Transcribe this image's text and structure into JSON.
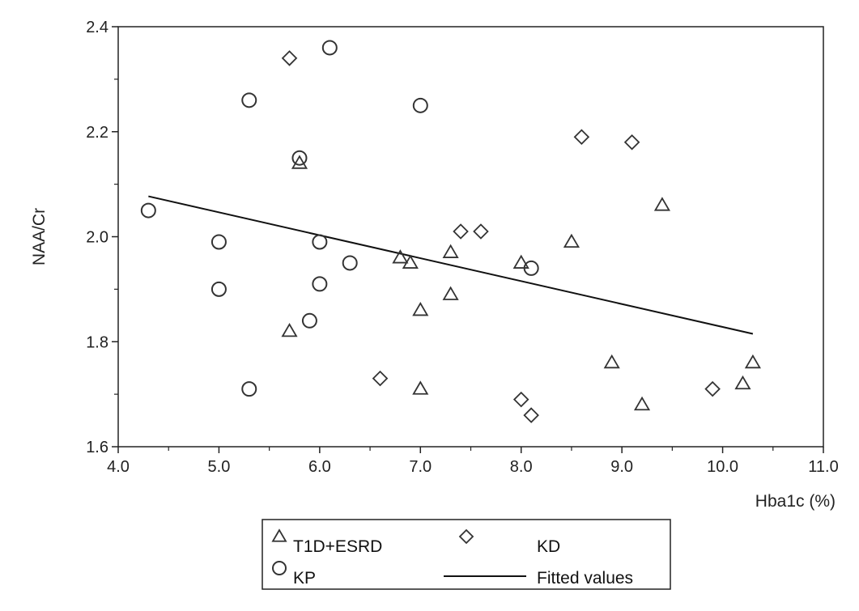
{
  "chart_data": {
    "type": "scatter",
    "xlabel": "Hba1c (%)",
    "ylabel": "NAA/Cr",
    "xlim": [
      4.0,
      11.0
    ],
    "ylim": [
      1.6,
      2.4
    ],
    "x_ticks": [
      "4.0",
      "5.0",
      "6.0",
      "7.0",
      "8.0",
      "9.0",
      "10.0",
      "11.0"
    ],
    "y_ticks": [
      "1.6",
      "1.8",
      "2.0",
      "2.2",
      "2.4"
    ],
    "grid": false,
    "legend_position": "bottom",
    "series": [
      {
        "name": "T1D+ESRD",
        "marker": "triangle",
        "color": "#333333",
        "points": [
          [
            5.7,
            1.82
          ],
          [
            5.8,
            2.14
          ],
          [
            6.8,
            1.96
          ],
          [
            6.9,
            1.95
          ],
          [
            7.0,
            1.86
          ],
          [
            7.0,
            1.71
          ],
          [
            7.3,
            1.97
          ],
          [
            7.3,
            1.89
          ],
          [
            8.0,
            1.95
          ],
          [
            8.5,
            1.99
          ],
          [
            8.9,
            1.76
          ],
          [
            9.2,
            1.68
          ],
          [
            9.4,
            2.06
          ],
          [
            10.2,
            1.72
          ],
          [
            10.3,
            1.76
          ]
        ]
      },
      {
        "name": "KD",
        "marker": "diamond",
        "color": "#333333",
        "points": [
          [
            5.7,
            2.34
          ],
          [
            6.6,
            1.73
          ],
          [
            7.4,
            2.01
          ],
          [
            7.6,
            2.01
          ],
          [
            8.0,
            1.69
          ],
          [
            8.1,
            1.66
          ],
          [
            8.6,
            2.19
          ],
          [
            9.1,
            2.18
          ],
          [
            9.9,
            1.71
          ]
        ]
      },
      {
        "name": "KP",
        "marker": "circle",
        "color": "#333333",
        "points": [
          [
            4.3,
            2.05
          ],
          [
            5.0,
            1.99
          ],
          [
            5.0,
            1.9
          ],
          [
            5.3,
            2.26
          ],
          [
            5.3,
            1.71
          ],
          [
            5.8,
            2.15
          ],
          [
            5.9,
            1.84
          ],
          [
            6.0,
            1.99
          ],
          [
            6.0,
            1.91
          ],
          [
            6.1,
            2.36
          ],
          [
            6.3,
            1.95
          ],
          [
            7.0,
            2.25
          ],
          [
            8.1,
            1.94
          ]
        ]
      },
      {
        "name": "Fitted values",
        "marker": "line",
        "color": "#111111",
        "points": [
          [
            4.3,
            2.077
          ],
          [
            10.3,
            1.815
          ]
        ]
      }
    ]
  }
}
